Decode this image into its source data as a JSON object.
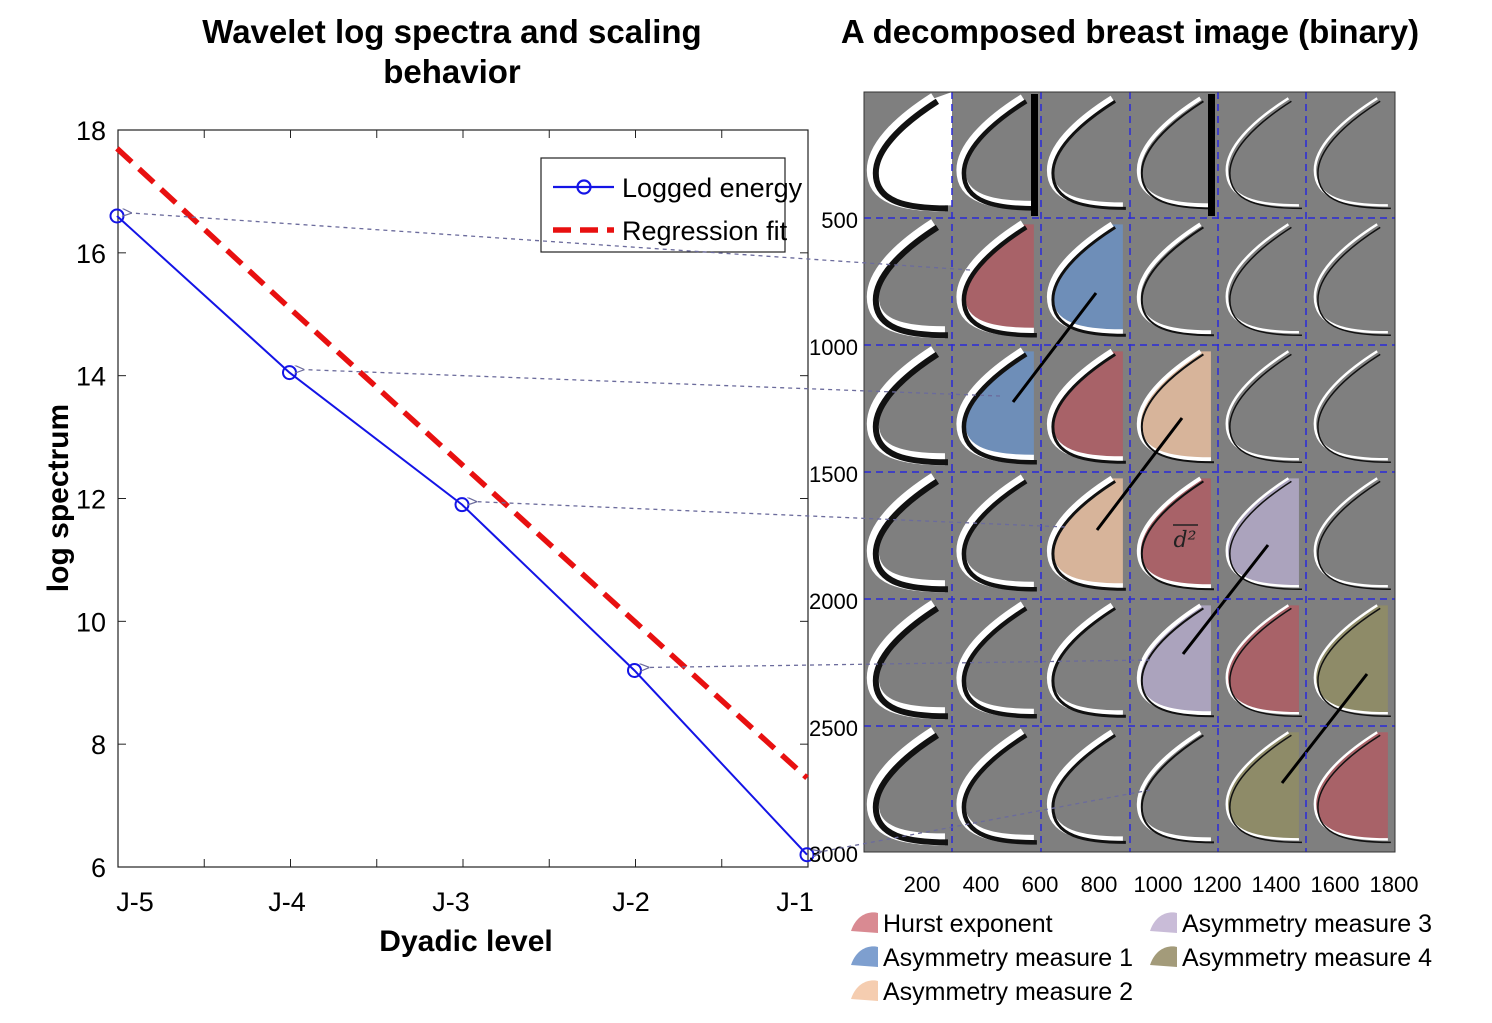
{
  "titles": {
    "left": [
      "Wavelet log spectra and scaling",
      "behavior"
    ],
    "right": "A decomposed breast image (binary)"
  },
  "chart_data": {
    "type": "line",
    "title": "Wavelet log spectra and scaling behavior",
    "xlabel": "Dyadic level",
    "ylabel": "log spectrum",
    "categories": [
      "J-5",
      "J-4",
      "J-3",
      "J-2",
      "J-1"
    ],
    "ylim": [
      6,
      18
    ],
    "yticks": [
      6,
      8,
      10,
      12,
      14,
      16,
      18
    ],
    "series": [
      {
        "name": "Logged energy",
        "values": [
          16.6,
          14.05,
          11.9,
          9.2,
          6.2
        ],
        "color": "#1414e6",
        "style": "solid-circle"
      },
      {
        "name": "Regression fit",
        "values": [
          17.7,
          15.1,
          12.55,
          10.0,
          7.45
        ],
        "color": "#e81010",
        "style": "dashed"
      }
    ]
  },
  "image_panel": {
    "xticks": [
      "200",
      "400",
      "600",
      "800",
      "1000",
      "1200",
      "1400",
      "1600",
      "1800"
    ],
    "yticks": [
      "500",
      "1000",
      "1500",
      "2000",
      "2500",
      "3000"
    ],
    "annotation": "d²",
    "highlights": [
      {
        "row": 1,
        "col": 1,
        "measure": "hurst"
      },
      {
        "row": 1,
        "col": 2,
        "measure": "asym1"
      },
      {
        "row": 2,
        "col": 1,
        "measure": "asym1"
      },
      {
        "row": 2,
        "col": 2,
        "measure": "hurst"
      },
      {
        "row": 2,
        "col": 3,
        "measure": "asym2"
      },
      {
        "row": 3,
        "col": 2,
        "measure": "asym2"
      },
      {
        "row": 3,
        "col": 3,
        "measure": "hurst"
      },
      {
        "row": 3,
        "col": 4,
        "measure": "asym3"
      },
      {
        "row": 4,
        "col": 3,
        "measure": "asym3"
      },
      {
        "row": 4,
        "col": 4,
        "measure": "hurst"
      },
      {
        "row": 4,
        "col": 5,
        "measure": "asym4"
      },
      {
        "row": 5,
        "col": 4,
        "measure": "asym4"
      },
      {
        "row": 5,
        "col": 5,
        "measure": "hurst"
      }
    ]
  },
  "legend": {
    "items": [
      {
        "key": "hurst",
        "label": "Hurst exponent",
        "color": "#d98a92"
      },
      {
        "key": "asym1",
        "label": "Asymmetry measure 1",
        "color": "#7e9fcf"
      },
      {
        "key": "asym2",
        "label": "Asymmetry measure 2",
        "color": "#f5cdb0"
      },
      {
        "key": "asym3",
        "label": "Asymmetry measure 3",
        "color": "#c9bcd8"
      },
      {
        "key": "asym4",
        "label": "Asymmetry measure 4",
        "color": "#a39b7a"
      }
    ],
    "fills": {
      "hurst": "#a86268",
      "asym1": "#6e8eb8",
      "asym2": "#d7b49a",
      "asym3": "#aba3bd",
      "asym4": "#8e8b68"
    }
  }
}
